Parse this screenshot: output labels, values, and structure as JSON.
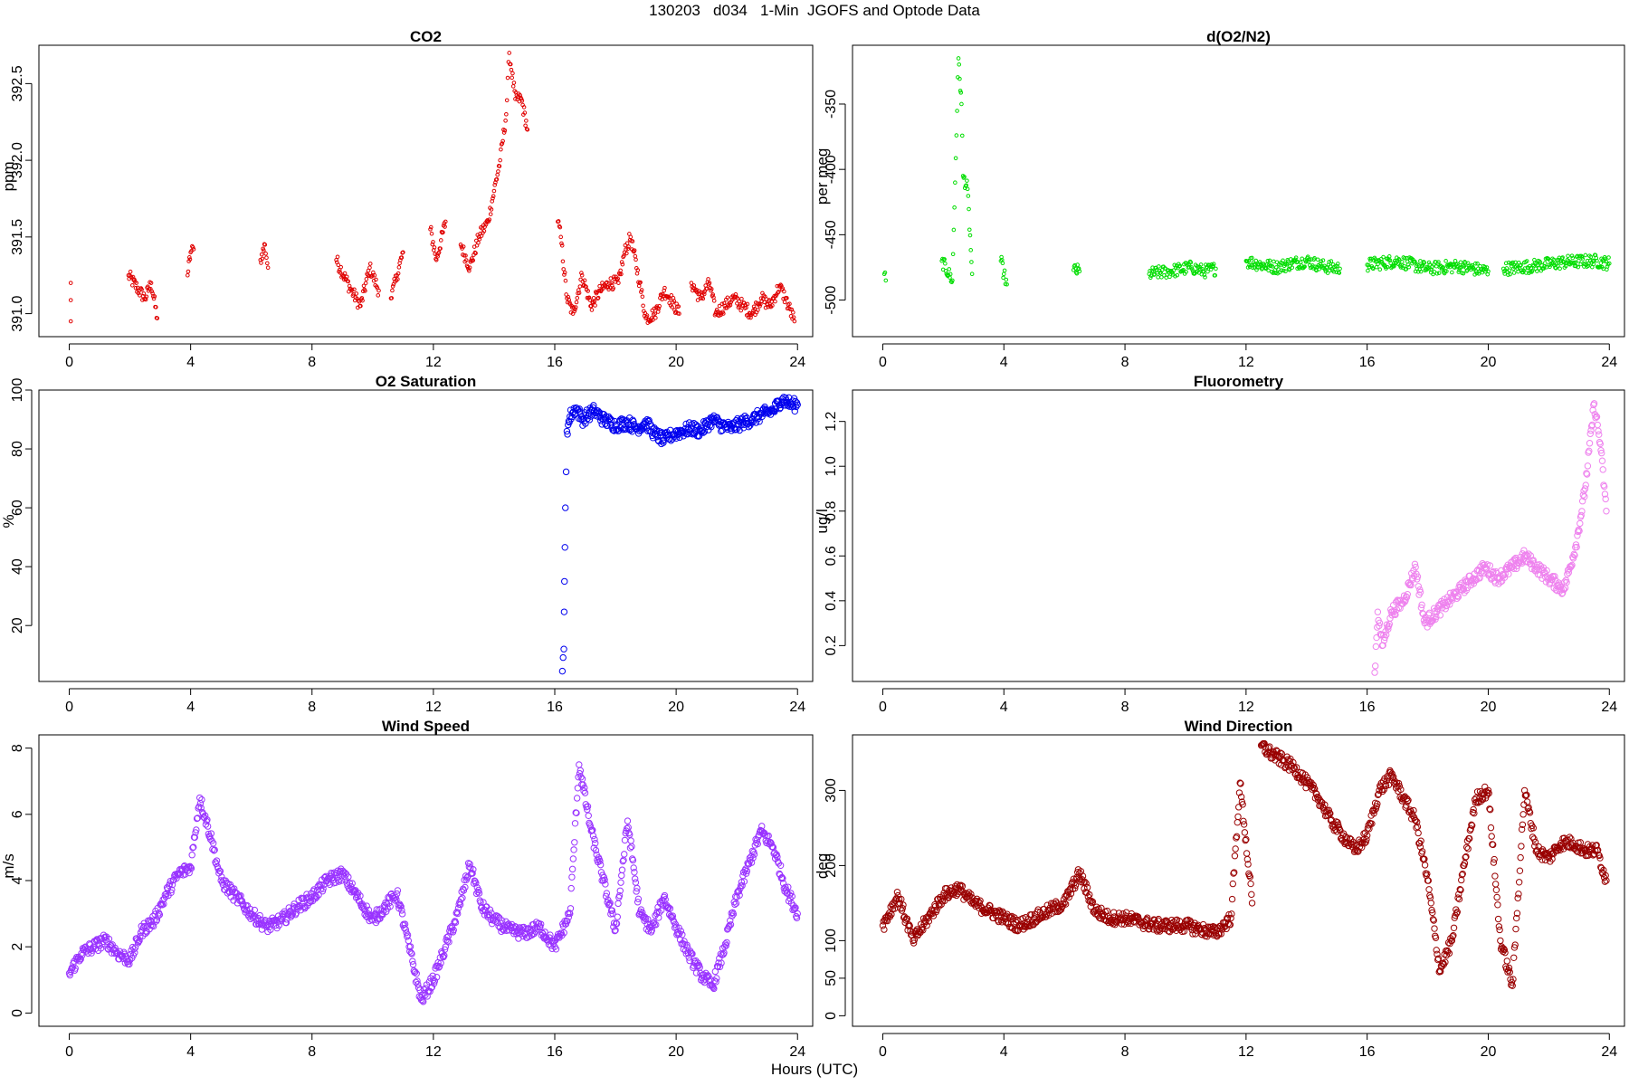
{
  "page": {
    "title": "130203   d034   1-Min  JGOFS and Optode Data",
    "xlabel": "Hours (UTC)"
  },
  "chart_data": [
    {
      "type": "scatter",
      "title": "CO2",
      "ylabel": "ppm",
      "color": "#e00000",
      "marker": "small-circle",
      "xlim": [
        -1,
        24.5
      ],
      "ylim": [
        390.85,
        392.75
      ],
      "xticks": [
        0,
        4,
        8,
        12,
        16,
        20,
        24
      ],
      "yticks": [
        391.0,
        391.5,
        392.0,
        392.5
      ],
      "ytick_labels": [
        "391.0",
        "391.5",
        "392.0",
        "392.5"
      ],
      "segments": [
        {
          "x": [
            0.05,
            0.05
          ],
          "y": [
            390.95,
            391.2
          ]
        },
        {
          "x": [
            1.95,
            2.3,
            2.5,
            2.7,
            2.9
          ],
          "y": [
            391.25,
            391.15,
            391.1,
            391.2,
            390.97
          ]
        },
        {
          "x": [
            3.9,
            4.0,
            4.1
          ],
          "y": [
            391.25,
            391.4,
            391.42
          ]
        },
        {
          "x": [
            6.3,
            6.45,
            6.55
          ],
          "y": [
            391.35,
            391.45,
            391.3
          ]
        },
        {
          "x": [
            8.8,
            9.3,
            9.6,
            9.9,
            10.2
          ],
          "y": [
            391.35,
            391.15,
            391.05,
            391.3,
            391.15
          ]
        },
        {
          "x": [
            10.6,
            10.8,
            11.0
          ],
          "y": [
            391.1,
            391.25,
            391.4
          ]
        },
        {
          "x": [
            11.9,
            12.1,
            12.4
          ],
          "y": [
            391.55,
            391.35,
            391.6
          ]
        },
        {
          "x": [
            12.9,
            13.2,
            13.5,
            13.8,
            14.0,
            14.2,
            14.4,
            14.5,
            14.7,
            14.9,
            15.1
          ],
          "y": [
            391.45,
            391.3,
            391.5,
            391.6,
            391.8,
            392.0,
            392.3,
            392.7,
            392.4,
            392.4,
            392.2
          ]
        },
        {
          "x": [
            16.1,
            16.2,
            16.4,
            16.6,
            16.9,
            17.2,
            17.5,
            17.8,
            18.1,
            18.3,
            18.5,
            18.8,
            19.0,
            19.3,
            19.6,
            19.8,
            20.1
          ],
          "y": [
            391.6,
            391.5,
            391.1,
            391.0,
            391.25,
            391.05,
            391.15,
            391.2,
            391.2,
            391.4,
            391.5,
            391.2,
            390.97,
            391.0,
            391.15,
            391.1,
            391.0
          ]
        },
        {
          "x": [
            20.5,
            20.8,
            21.1,
            21.3,
            21.6,
            21.9,
            22.2,
            22.5,
            22.8,
            23.1,
            23.4,
            23.6,
            23.9
          ],
          "y": [
            391.2,
            391.1,
            391.2,
            391.0,
            391.05,
            391.1,
            391.05,
            391.0,
            391.1,
            391.05,
            391.18,
            391.1,
            390.95
          ]
        }
      ]
    },
    {
      "type": "scatter",
      "title": "d(O2/N2)",
      "ylabel": "per meg",
      "color": "#00dd00",
      "marker": "small-circle",
      "xlim": [
        -1,
        24.5
      ],
      "ylim": [
        -528,
        -305
      ],
      "xticks": [
        0,
        4,
        8,
        12,
        16,
        20,
        24
      ],
      "yticks": [
        -500,
        -450,
        -400,
        -350
      ],
      "ytick_labels": [
        "-500",
        "-450",
        "-400",
        "-350"
      ],
      "segments": [
        {
          "x": [
            0.05,
            0.1
          ],
          "y": [
            -480,
            -485
          ]
        },
        {
          "x": [
            1.95,
            2.3,
            2.5,
            2.6,
            2.65,
            2.8,
            2.95
          ],
          "y": [
            -470,
            -485,
            -315,
            -350,
            -405,
            -415,
            -480
          ]
        },
        {
          "x": [
            3.9,
            4.0,
            4.1
          ],
          "y": [
            -470,
            -480,
            -488
          ]
        },
        {
          "x": [
            6.3,
            6.5
          ],
          "y": [
            -477,
            -478
          ]
        },
        {
          "x": [
            8.8,
            9.5,
            10.2,
            10.6,
            11.0
          ],
          "y": [
            -480,
            -478,
            -475,
            -478,
            -476
          ]
        },
        {
          "x": [
            12.0,
            12.5,
            13.0,
            13.5,
            14.0,
            14.5,
            15.1
          ],
          "y": [
            -470,
            -473,
            -475,
            -472,
            -470,
            -474,
            -476
          ]
        },
        {
          "x": [
            16.0,
            17.0,
            18.0,
            19.0,
            20.0
          ],
          "y": [
            -473,
            -470,
            -476,
            -474,
            -478
          ]
        },
        {
          "x": [
            20.5,
            21.5,
            22.5,
            23.5,
            24.0
          ],
          "y": [
            -476,
            -474,
            -471,
            -470,
            -472
          ]
        }
      ]
    },
    {
      "type": "scatter",
      "title": "O2 Saturation",
      "ylabel": "%",
      "color": "#0000ee",
      "marker": "open-circle",
      "xlim": [
        -1,
        24.5
      ],
      "ylim": [
        1,
        100
      ],
      "xticks": [
        0,
        4,
        8,
        12,
        16,
        20,
        24
      ],
      "yticks": [
        20,
        40,
        60,
        80,
        100
      ],
      "ytick_labels": [
        "20",
        "40",
        "60",
        "80",
        "100"
      ],
      "segments": [
        {
          "x": [
            16.25,
            16.3,
            16.32,
            16.35,
            16.4,
            16.5,
            16.7,
            16.9,
            17.3,
            17.6,
            18.0,
            18.4,
            18.7,
            19.0,
            19.3,
            19.6,
            19.9,
            20.2,
            20.5,
            20.8,
            21.2,
            21.5,
            21.8,
            22.2,
            22.5,
            22.9,
            23.2,
            23.5,
            23.8,
            24.0
          ],
          "y": [
            4.5,
            12,
            35,
            60,
            86,
            91,
            94,
            90,
            93,
            90,
            88,
            89,
            87,
            89,
            85,
            83,
            85,
            86,
            87,
            86,
            90,
            88,
            87,
            89,
            90,
            92,
            93,
            97,
            95,
            95
          ]
        }
      ]
    },
    {
      "type": "scatter",
      "title": "Fluorometry",
      "ylabel": "ug/l",
      "color": "#ee82ee",
      "marker": "open-circle",
      "xlim": [
        -1,
        24.5
      ],
      "ylim": [
        0.04,
        1.34
      ],
      "xticks": [
        0,
        4,
        8,
        12,
        16,
        20,
        24
      ],
      "yticks": [
        0.2,
        0.4,
        0.6,
        0.8,
        1.0,
        1.2
      ],
      "ytick_labels": [
        "0.2",
        "0.4",
        "0.6",
        "0.8",
        "1.0",
        "1.2"
      ],
      "segments": [
        {
          "x": [
            16.25,
            16.35,
            16.5,
            16.8,
            17.2,
            17.6,
            17.9,
            18.3,
            18.7,
            19.1,
            19.5,
            19.9,
            20.3,
            20.8,
            21.2,
            21.6,
            22.0,
            22.5,
            22.9,
            23.2,
            23.5,
            23.7,
            23.9
          ],
          "y": [
            0.08,
            0.35,
            0.2,
            0.35,
            0.4,
            0.55,
            0.3,
            0.35,
            0.4,
            0.45,
            0.5,
            0.55,
            0.5,
            0.55,
            0.6,
            0.55,
            0.5,
            0.45,
            0.65,
            0.9,
            1.28,
            1.1,
            0.8
          ]
        }
      ]
    },
    {
      "type": "scatter",
      "title": "Wind Speed",
      "ylabel": "m/s",
      "color": "#9933ff",
      "marker": "open-circle",
      "xlim": [
        -1,
        24.5
      ],
      "ylim": [
        -0.4,
        8.4
      ],
      "xticks": [
        0,
        4,
        8,
        12,
        16,
        20,
        24
      ],
      "yticks": [
        0,
        2,
        4,
        6,
        8
      ],
      "ytick_labels": [
        "0",
        "2",
        "4",
        "6",
        "8"
      ],
      "segments": [
        {
          "x": [
            0,
            0.4,
            0.8,
            1.2,
            1.6,
            2.0,
            2.4,
            2.8,
            3.2,
            3.6,
            4.0,
            4.3,
            4.7,
            5.0,
            5.5,
            6.0,
            6.5,
            7.0,
            7.5,
            8.0,
            8.5,
            9.0,
            9.5,
            10.0,
            10.4,
            10.8,
            11.2,
            11.6,
            12.0,
            12.4,
            12.8,
            13.2,
            13.6,
            14.0,
            14.5,
            15.0,
            15.5,
            16.0,
            16.5,
            16.8,
            17.2,
            17.6,
            18.0,
            18.4,
            18.8,
            19.2,
            19.6,
            20.0,
            20.4,
            20.8,
            21.2,
            21.6,
            22.0,
            22.4,
            22.8,
            23.2,
            23.6,
            24.0
          ],
          "y": [
            1.2,
            1.8,
            2.0,
            2.2,
            1.8,
            1.6,
            2.5,
            2.8,
            3.6,
            4.2,
            4.4,
            6.5,
            5.2,
            4.0,
            3.5,
            3.0,
            2.6,
            2.8,
            3.2,
            3.5,
            4.0,
            4.2,
            3.5,
            2.8,
            3.2,
            3.6,
            2.0,
            0.4,
            1.0,
            2.0,
            3.0,
            4.5,
            3.2,
            2.8,
            2.5,
            2.4,
            2.6,
            2.0,
            3.0,
            7.5,
            5.5,
            4.0,
            2.5,
            5.8,
            3.0,
            2.5,
            3.5,
            2.6,
            1.8,
            1.2,
            0.8,
            2.0,
            3.5,
            4.5,
            5.5,
            5.0,
            3.8,
            3.0
          ]
        }
      ]
    },
    {
      "type": "scatter",
      "title": "Wind Direction",
      "ylabel": "deg",
      "color": "#990000",
      "marker": "open-circle",
      "xlim": [
        -1,
        24.5
      ],
      "ylim": [
        -14,
        374
      ],
      "xticks": [
        0,
        4,
        8,
        12,
        16,
        20,
        24
      ],
      "yticks": [
        0,
        50,
        100,
        200,
        300
      ],
      "ytick_labels": [
        "0",
        "50",
        "100",
        "200",
        "300"
      ],
      "segments": [
        {
          "x": [
            0,
            0.5,
            1.0,
            1.5,
            2.0,
            2.5,
            3.0,
            3.5,
            4.0,
            4.5,
            5.0,
            5.5,
            6.0,
            6.5,
            7.0,
            7.5,
            8.0,
            8.5,
            9.0,
            9.5,
            10.0,
            10.5,
            11.0,
            11.5,
            11.8,
            12.2
          ],
          "y": [
            120,
            160,
            100,
            130,
            160,
            170,
            150,
            140,
            130,
            120,
            130,
            140,
            150,
            190,
            140,
            130,
            130,
            125,
            120,
            120,
            120,
            115,
            110,
            130,
            310,
            150
          ]
        },
        {
          "x": [
            12.5,
            12.8,
            13.2,
            13.6,
            14.0,
            14.4,
            14.8,
            15.2,
            15.6,
            16.0,
            16.4,
            16.8,
            17.2,
            17.6,
            18.0,
            18.4,
            18.8,
            19.2,
            19.6,
            20.0,
            20.4,
            20.8,
            21.2,
            21.6,
            22.0,
            22.4,
            22.8,
            23.2,
            23.6,
            23.9
          ],
          "y": [
            360,
            350,
            340,
            330,
            310,
            290,
            260,
            240,
            220,
            240,
            300,
            320,
            290,
            260,
            180,
            60,
            100,
            200,
            290,
            300,
            100,
            40,
            300,
            220,
            210,
            230,
            230,
            220,
            220,
            180
          ]
        }
      ]
    }
  ]
}
